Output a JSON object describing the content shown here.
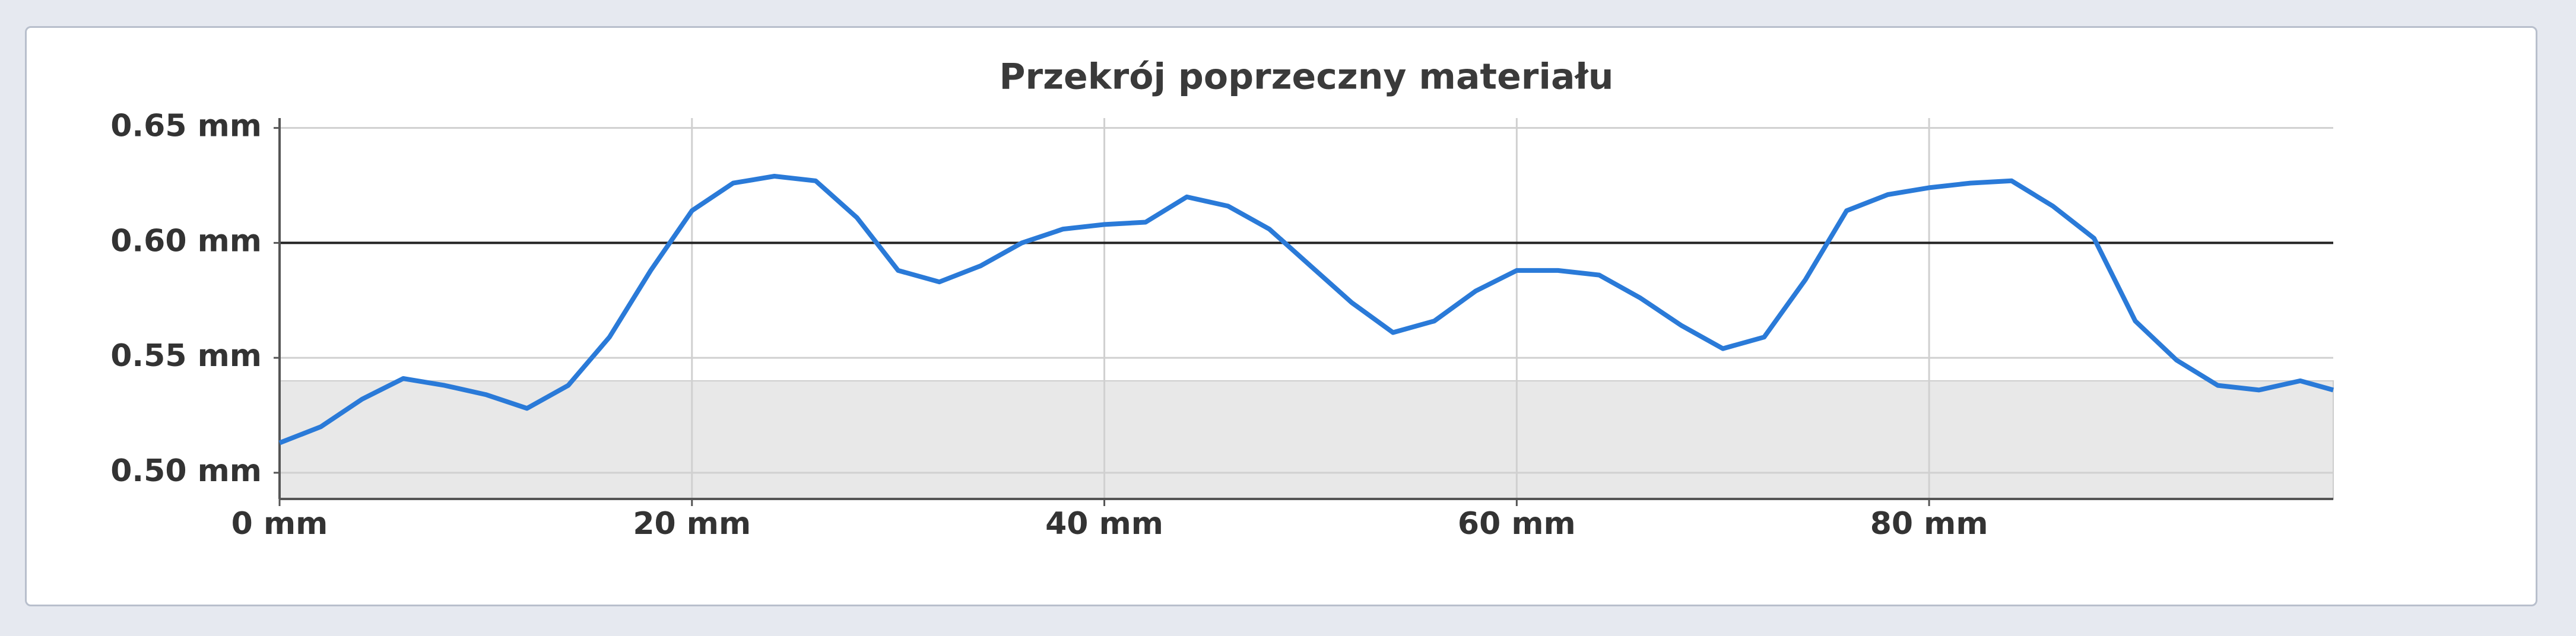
{
  "chart_data": {
    "type": "line",
    "title": "Przekrój poprzeczny materiału",
    "x": [
      0,
      2,
      4,
      6,
      8,
      10,
      12,
      14,
      16,
      18,
      20,
      22,
      24,
      26,
      28,
      30,
      32,
      34,
      36,
      38,
      40,
      42,
      44,
      46,
      48,
      50,
      52,
      54,
      56,
      58,
      60,
      62,
      64,
      66,
      68,
      70,
      72,
      74,
      76,
      78,
      80,
      82,
      84,
      86,
      88,
      90,
      92,
      94,
      96,
      98,
      99.6
    ],
    "series": [
      {
        "color": "#2a7ad8",
        "values": [
          0.513,
          0.52,
          0.532,
          0.541,
          0.538,
          0.534,
          0.528,
          0.538,
          0.559,
          0.588,
          0.614,
          0.626,
          0.629,
          0.627,
          0.611,
          0.588,
          0.583,
          0.59,
          0.6,
          0.606,
          0.608,
          0.609,
          0.62,
          0.616,
          0.606,
          0.59,
          0.574,
          0.561,
          0.566,
          0.579,
          0.588,
          0.588,
          0.586,
          0.576,
          0.564,
          0.554,
          0.559,
          0.584,
          0.614,
          0.621,
          0.624,
          0.626,
          0.627,
          0.616,
          0.602,
          0.566,
          0.549,
          0.538,
          0.536,
          0.54,
          0.536
        ]
      }
    ],
    "xlim": [
      0,
      99.6
    ],
    "ylim": [
      0.4886,
      0.6543
    ],
    "xticks": [
      {
        "value": 0,
        "label": "0 mm"
      },
      {
        "value": 20,
        "label": "20 mm"
      },
      {
        "value": 40,
        "label": "40 mm"
      },
      {
        "value": 60,
        "label": "60 mm"
      },
      {
        "value": 80,
        "label": "80 mm"
      }
    ],
    "yticks": [
      {
        "value": 0.5,
        "label": "0.50 mm"
      },
      {
        "value": 0.55,
        "label": "0.55 mm"
      },
      {
        "value": 0.6,
        "label": "0.60 mm"
      },
      {
        "value": 0.65,
        "label": "0.65 mm"
      }
    ],
    "grid": true,
    "reference_line": 0.6,
    "shaded_below": 0.54
  }
}
